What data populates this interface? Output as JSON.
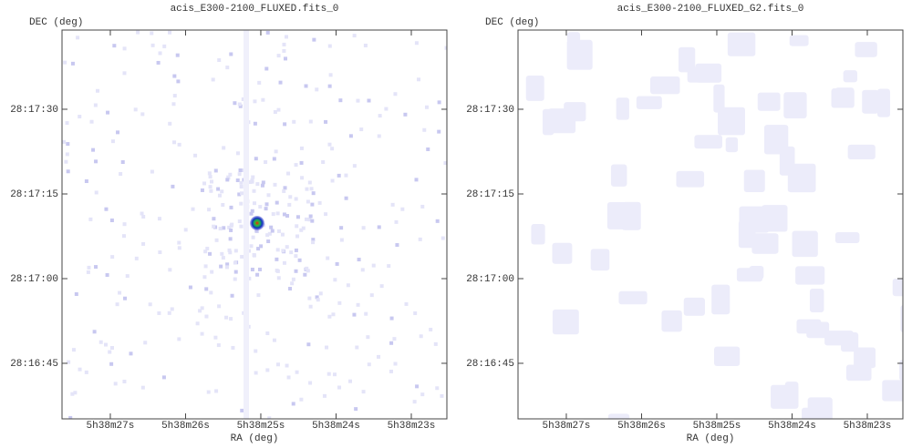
{
  "chart_data": [
    {
      "type": "image",
      "title": "acis_E300-2100_FLUXED.fits_0",
      "xlabel": "RA (deg)",
      "ylabel": "DEC (deg)",
      "xlim": [
        84.615175,
        84.593863
      ],
      "ylim": [
        28.276433,
        28.295564
      ],
      "xticks": [
        {
          "value": 84.6125,
          "label": "5h38m27s"
        },
        {
          "value": 84.608333,
          "label": "5h38m26s"
        },
        {
          "value": 84.604167,
          "label": "5h38m25s"
        },
        {
          "value": 84.6,
          "label": "5h38m24s"
        },
        {
          "value": 84.595833,
          "label": "5h38m23s"
        }
      ],
      "yticks": [
        {
          "value": 28.291667,
          "label": "28:17:30"
        },
        {
          "value": 28.2875,
          "label": "28:17:15"
        },
        {
          "value": 28.283333,
          "label": "28:17:00"
        },
        {
          "value": 28.279167,
          "label": "28:16:45"
        }
      ]
    },
    {
      "type": "image",
      "title": "acis_E300-2100_FLUXED_G2.fits_0",
      "xlabel": "RA (deg)",
      "ylabel": "DEC (deg)",
      "xlim": [
        84.615175,
        84.593863
      ],
      "ylim": [
        28.276433,
        28.295564
      ],
      "xticks": [
        {
          "value": 84.6125,
          "label": "5h38m27s"
        },
        {
          "value": 84.608333,
          "label": "5h38m26s"
        },
        {
          "value": 84.604167,
          "label": "5h38m25s"
        },
        {
          "value": 84.6,
          "label": "5h38m24s"
        },
        {
          "value": 84.595833,
          "label": "5h38m23s"
        }
      ],
      "yticks": [
        {
          "value": 28.291667,
          "label": "28:17:30"
        },
        {
          "value": 28.2875,
          "label": "28:17:15"
        },
        {
          "value": 28.283333,
          "label": "28:17:00"
        },
        {
          "value": 28.279167,
          "label": "28:16:45"
        }
      ]
    }
  ]
}
